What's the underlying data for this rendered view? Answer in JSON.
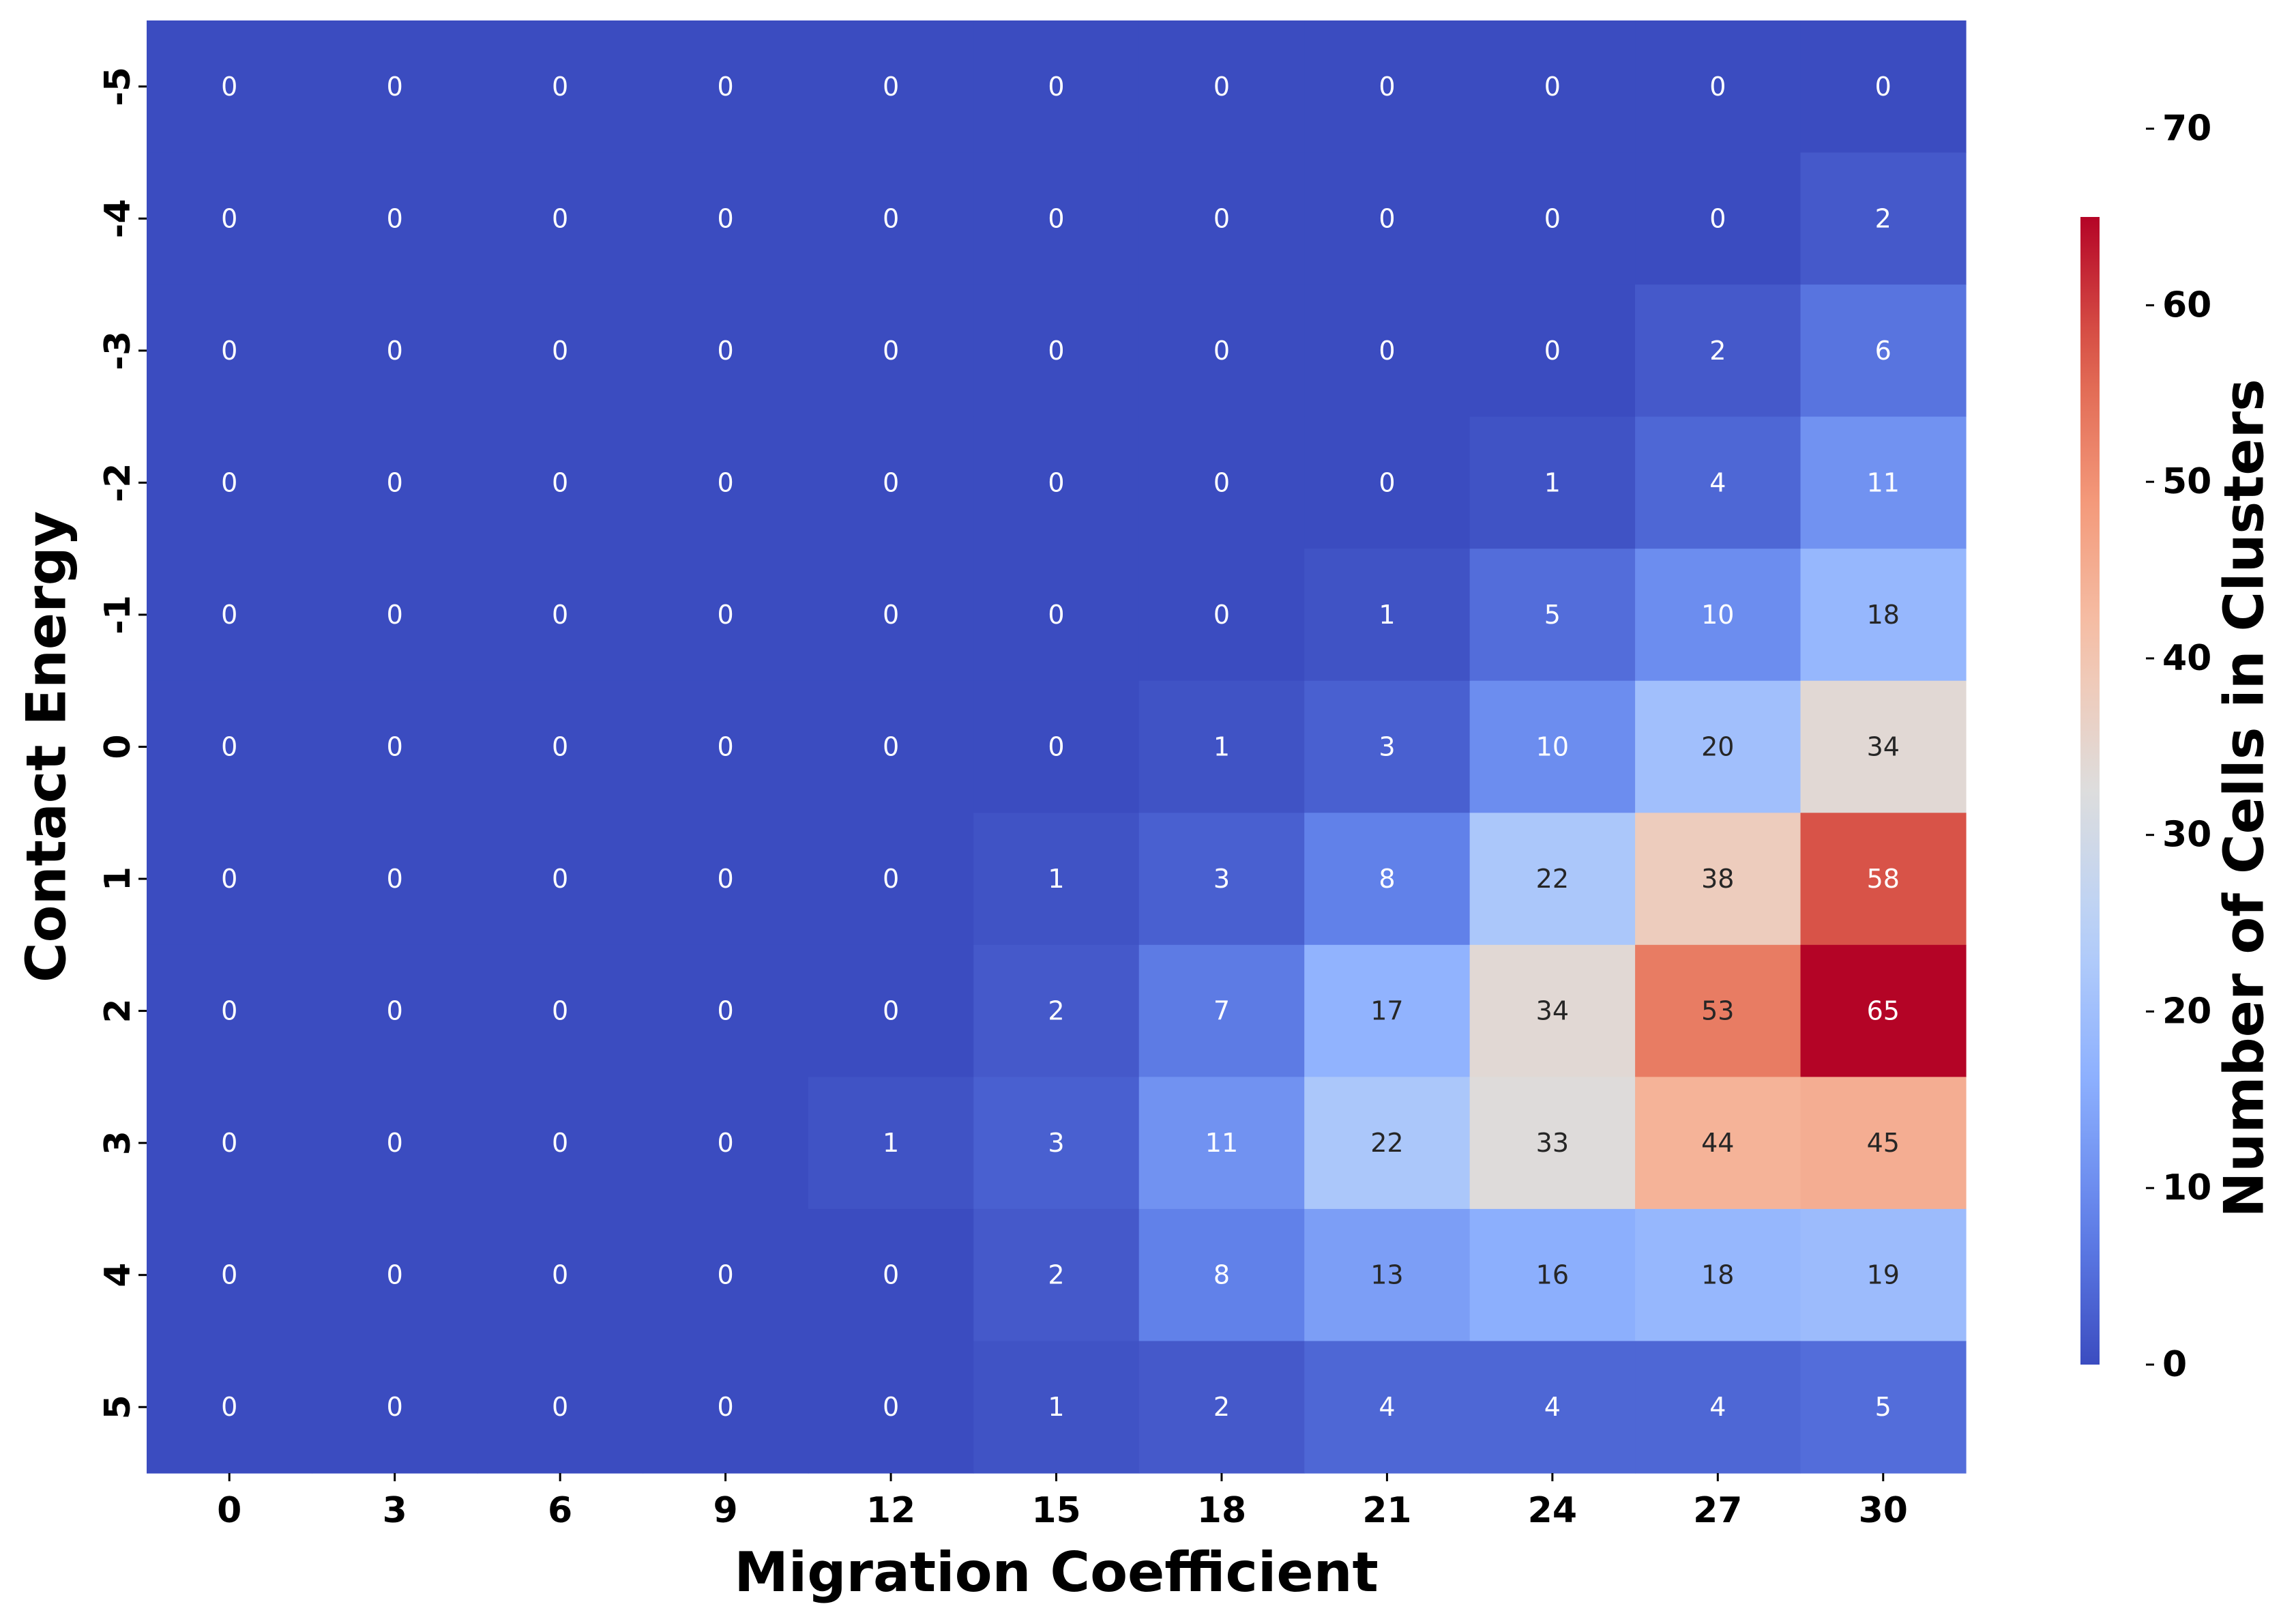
{
  "chart_data": {
    "type": "heatmap",
    "xlabel": "Migration Coefficient",
    "ylabel": "Contact Energy",
    "x_categories": [
      "0",
      "3",
      "6",
      "9",
      "12",
      "15",
      "18",
      "21",
      "24",
      "27",
      "30"
    ],
    "y_categories": [
      "-5",
      "-4",
      "-3",
      "-2",
      "-1",
      "0",
      "1",
      "2",
      "3",
      "4",
      "5"
    ],
    "values": [
      [
        0,
        0,
        0,
        0,
        0,
        0,
        0,
        0,
        0,
        0,
        0
      ],
      [
        0,
        0,
        0,
        0,
        0,
        0,
        0,
        0,
        0,
        0,
        2
      ],
      [
        0,
        0,
        0,
        0,
        0,
        0,
        0,
        0,
        0,
        2,
        6
      ],
      [
        0,
        0,
        0,
        0,
        0,
        0,
        0,
        0,
        1,
        4,
        11
      ],
      [
        0,
        0,
        0,
        0,
        0,
        0,
        0,
        1,
        5,
        10,
        18
      ],
      [
        0,
        0,
        0,
        0,
        0,
        0,
        1,
        3,
        10,
        20,
        34
      ],
      [
        0,
        0,
        0,
        0,
        0,
        1,
        3,
        8,
        22,
        38,
        58
      ],
      [
        0,
        0,
        0,
        0,
        0,
        2,
        7,
        17,
        34,
        53,
        65
      ],
      [
        0,
        0,
        0,
        0,
        1,
        3,
        11,
        22,
        33,
        44,
        45
      ],
      [
        0,
        0,
        0,
        0,
        0,
        2,
        8,
        13,
        16,
        18,
        19
      ],
      [
        0,
        0,
        0,
        0,
        0,
        1,
        2,
        4,
        4,
        4,
        5
      ]
    ],
    "annotations": true,
    "colormap": "coolwarm",
    "colorbar": {
      "label": "Number of Cells in Clusters",
      "vmin": 0,
      "vmax": 65,
      "ticks": [
        "0",
        "10",
        "20",
        "30",
        "40",
        "50",
        "60",
        "70"
      ]
    },
    "grid": false,
    "legend": "none"
  }
}
